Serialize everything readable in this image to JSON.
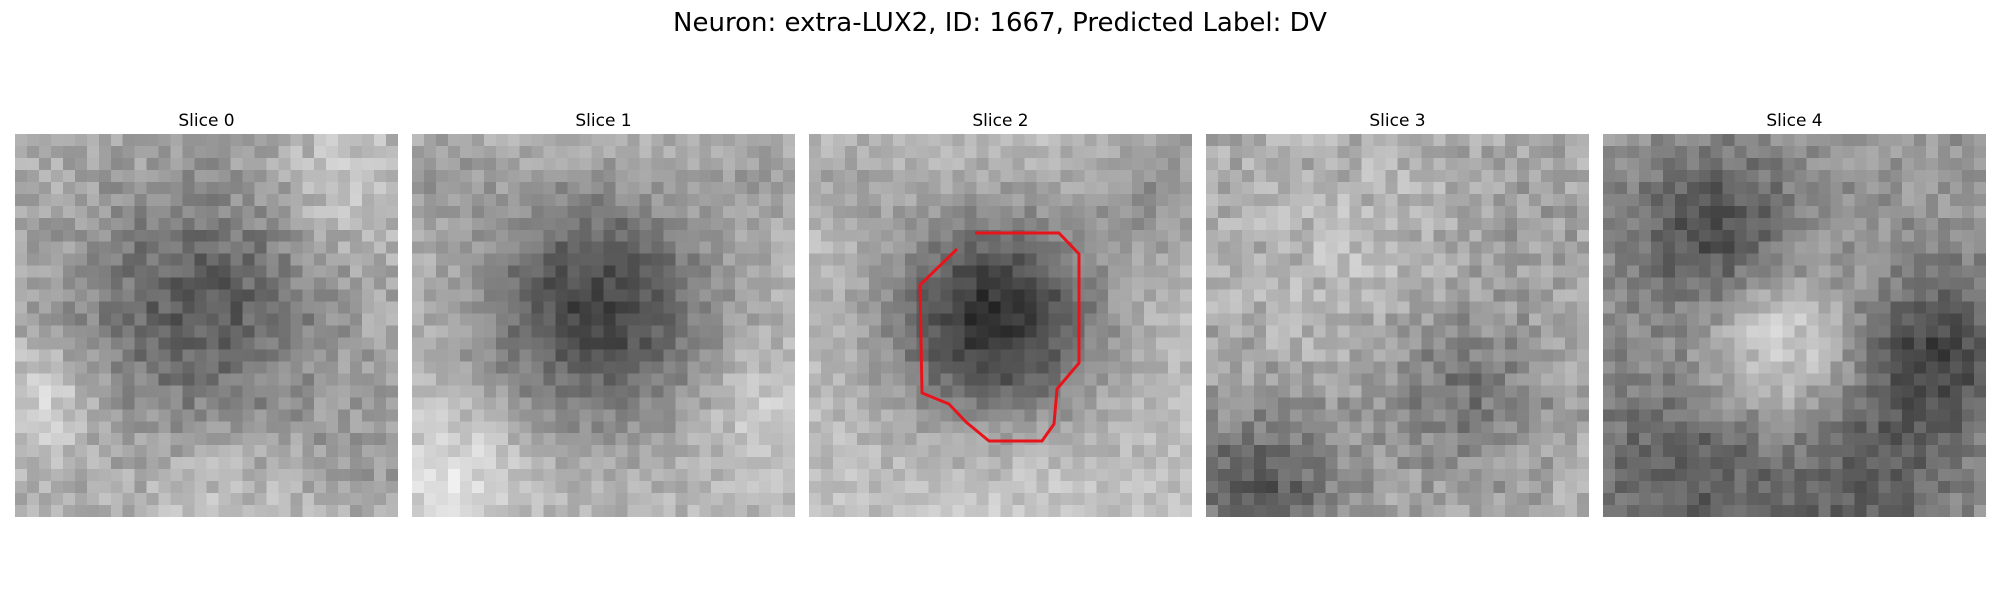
{
  "figure": {
    "title": "Neuron: extra-LUX2, ID: 1667, Predicted Label: DV"
  },
  "slices": [
    {
      "title": "Slice 0"
    },
    {
      "title": "Slice 1"
    },
    {
      "title": "Slice 2"
    },
    {
      "title": "Slice 3"
    },
    {
      "title": "Slice 4"
    }
  ],
  "colors": {
    "contour": "#e8141c",
    "background": "#ffffff"
  },
  "image": {
    "grid_size": 32,
    "colormap": "gray",
    "contour_slice": 2
  }
}
